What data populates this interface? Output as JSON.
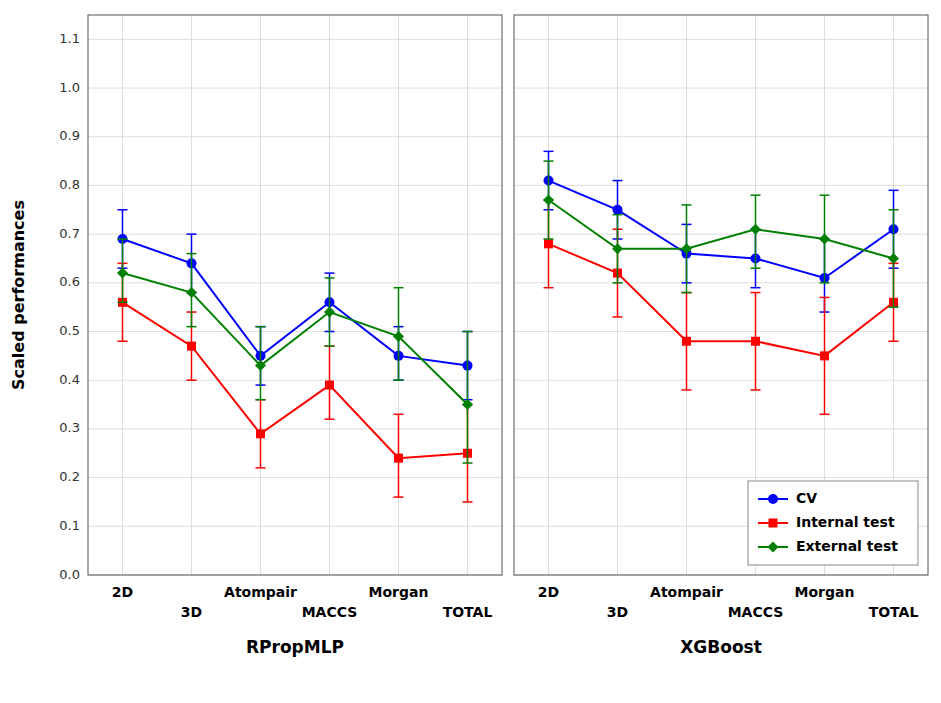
{
  "chart_data": [
    {
      "type": "line",
      "x_label": "RPropMLP",
      "y_label": "Scaled performances",
      "categories": [
        "2D",
        "3D",
        "Atompair",
        "MACCS",
        "Morgan",
        "TOTAL"
      ],
      "series": [
        {
          "name": "CV",
          "color": "#0000ff",
          "marker": "circle",
          "values": [
            0.69,
            0.64,
            0.45,
            0.56,
            0.45,
            0.43
          ],
          "error_low": [
            0.06,
            0.06,
            0.06,
            0.06,
            0.05,
            0.07
          ],
          "error_high": [
            0.06,
            0.06,
            0.06,
            0.06,
            0.06,
            0.07
          ]
        },
        {
          "name": "Internal test",
          "color": "#ff0000",
          "marker": "square",
          "values": [
            0.56,
            0.47,
            0.29,
            0.39,
            0.24,
            0.25
          ],
          "error_low": [
            0.08,
            0.07,
            0.07,
            0.07,
            0.08,
            0.1
          ],
          "error_high": [
            0.08,
            0.07,
            0.07,
            0.08,
            0.09,
            0.1
          ]
        },
        {
          "name": "External test",
          "color": "#008000",
          "marker": "diamond",
          "values": [
            0.62,
            0.58,
            0.43,
            0.54,
            0.49,
            0.35
          ],
          "error_low": [
            0.06,
            0.07,
            0.07,
            0.07,
            0.09,
            0.12
          ],
          "error_high": [
            0.07,
            0.08,
            0.08,
            0.07,
            0.1,
            0.15
          ]
        }
      ],
      "ylim": [
        0,
        1.15
      ],
      "yticks": [
        {
          "value": 0,
          "label": "0.0"
        },
        0.1,
        0.2,
        0.3,
        0.4,
        0.5,
        0.6,
        0.7,
        0.8,
        0.9,
        {
          "value": 1,
          "label": "1.0"
        },
        1.1
      ],
      "grid": true
    },
    {
      "type": "line",
      "x_label": "XGBoost",
      "categories": [
        "2D",
        "3D",
        "Atompair",
        "MACCS",
        "Morgan",
        "TOTAL"
      ],
      "series": [
        {
          "name": "CV",
          "color": "#0000ff",
          "marker": "circle",
          "values": [
            0.81,
            0.75,
            0.66,
            0.65,
            0.61,
            0.71
          ],
          "error_low": [
            0.06,
            0.06,
            0.06,
            0.06,
            0.07,
            0.08
          ],
          "error_high": [
            0.06,
            0.06,
            0.06,
            0.06,
            0.08,
            0.08
          ]
        },
        {
          "name": "Internal test",
          "color": "#ff0000",
          "marker": "square",
          "values": [
            0.68,
            0.62,
            0.48,
            0.48,
            0.45,
            0.56
          ],
          "error_low": [
            0.09,
            0.09,
            0.1,
            0.1,
            0.12,
            0.08
          ],
          "error_high": [
            0.09,
            0.09,
            0.1,
            0.1,
            0.12,
            0.08
          ]
        },
        {
          "name": "External test",
          "color": "#008000",
          "marker": "diamond",
          "values": [
            0.77,
            0.67,
            0.67,
            0.71,
            0.69,
            0.65
          ],
          "error_low": [
            0.08,
            0.07,
            0.09,
            0.08,
            0.09,
            0.1
          ],
          "error_high": [
            0.08,
            0.07,
            0.09,
            0.07,
            0.09,
            0.1
          ]
        }
      ],
      "ylim": [
        0,
        1.15
      ],
      "yticks": [
        {
          "value": 0,
          "label": "0.0"
        },
        0.1,
        0.2,
        0.3,
        0.4,
        0.5,
        0.6,
        0.7,
        0.8,
        0.9,
        {
          "value": 1,
          "label": "1.0"
        },
        1.1
      ],
      "grid": true,
      "tick_labels": "x",
      "legend": "lower right"
    }
  ]
}
